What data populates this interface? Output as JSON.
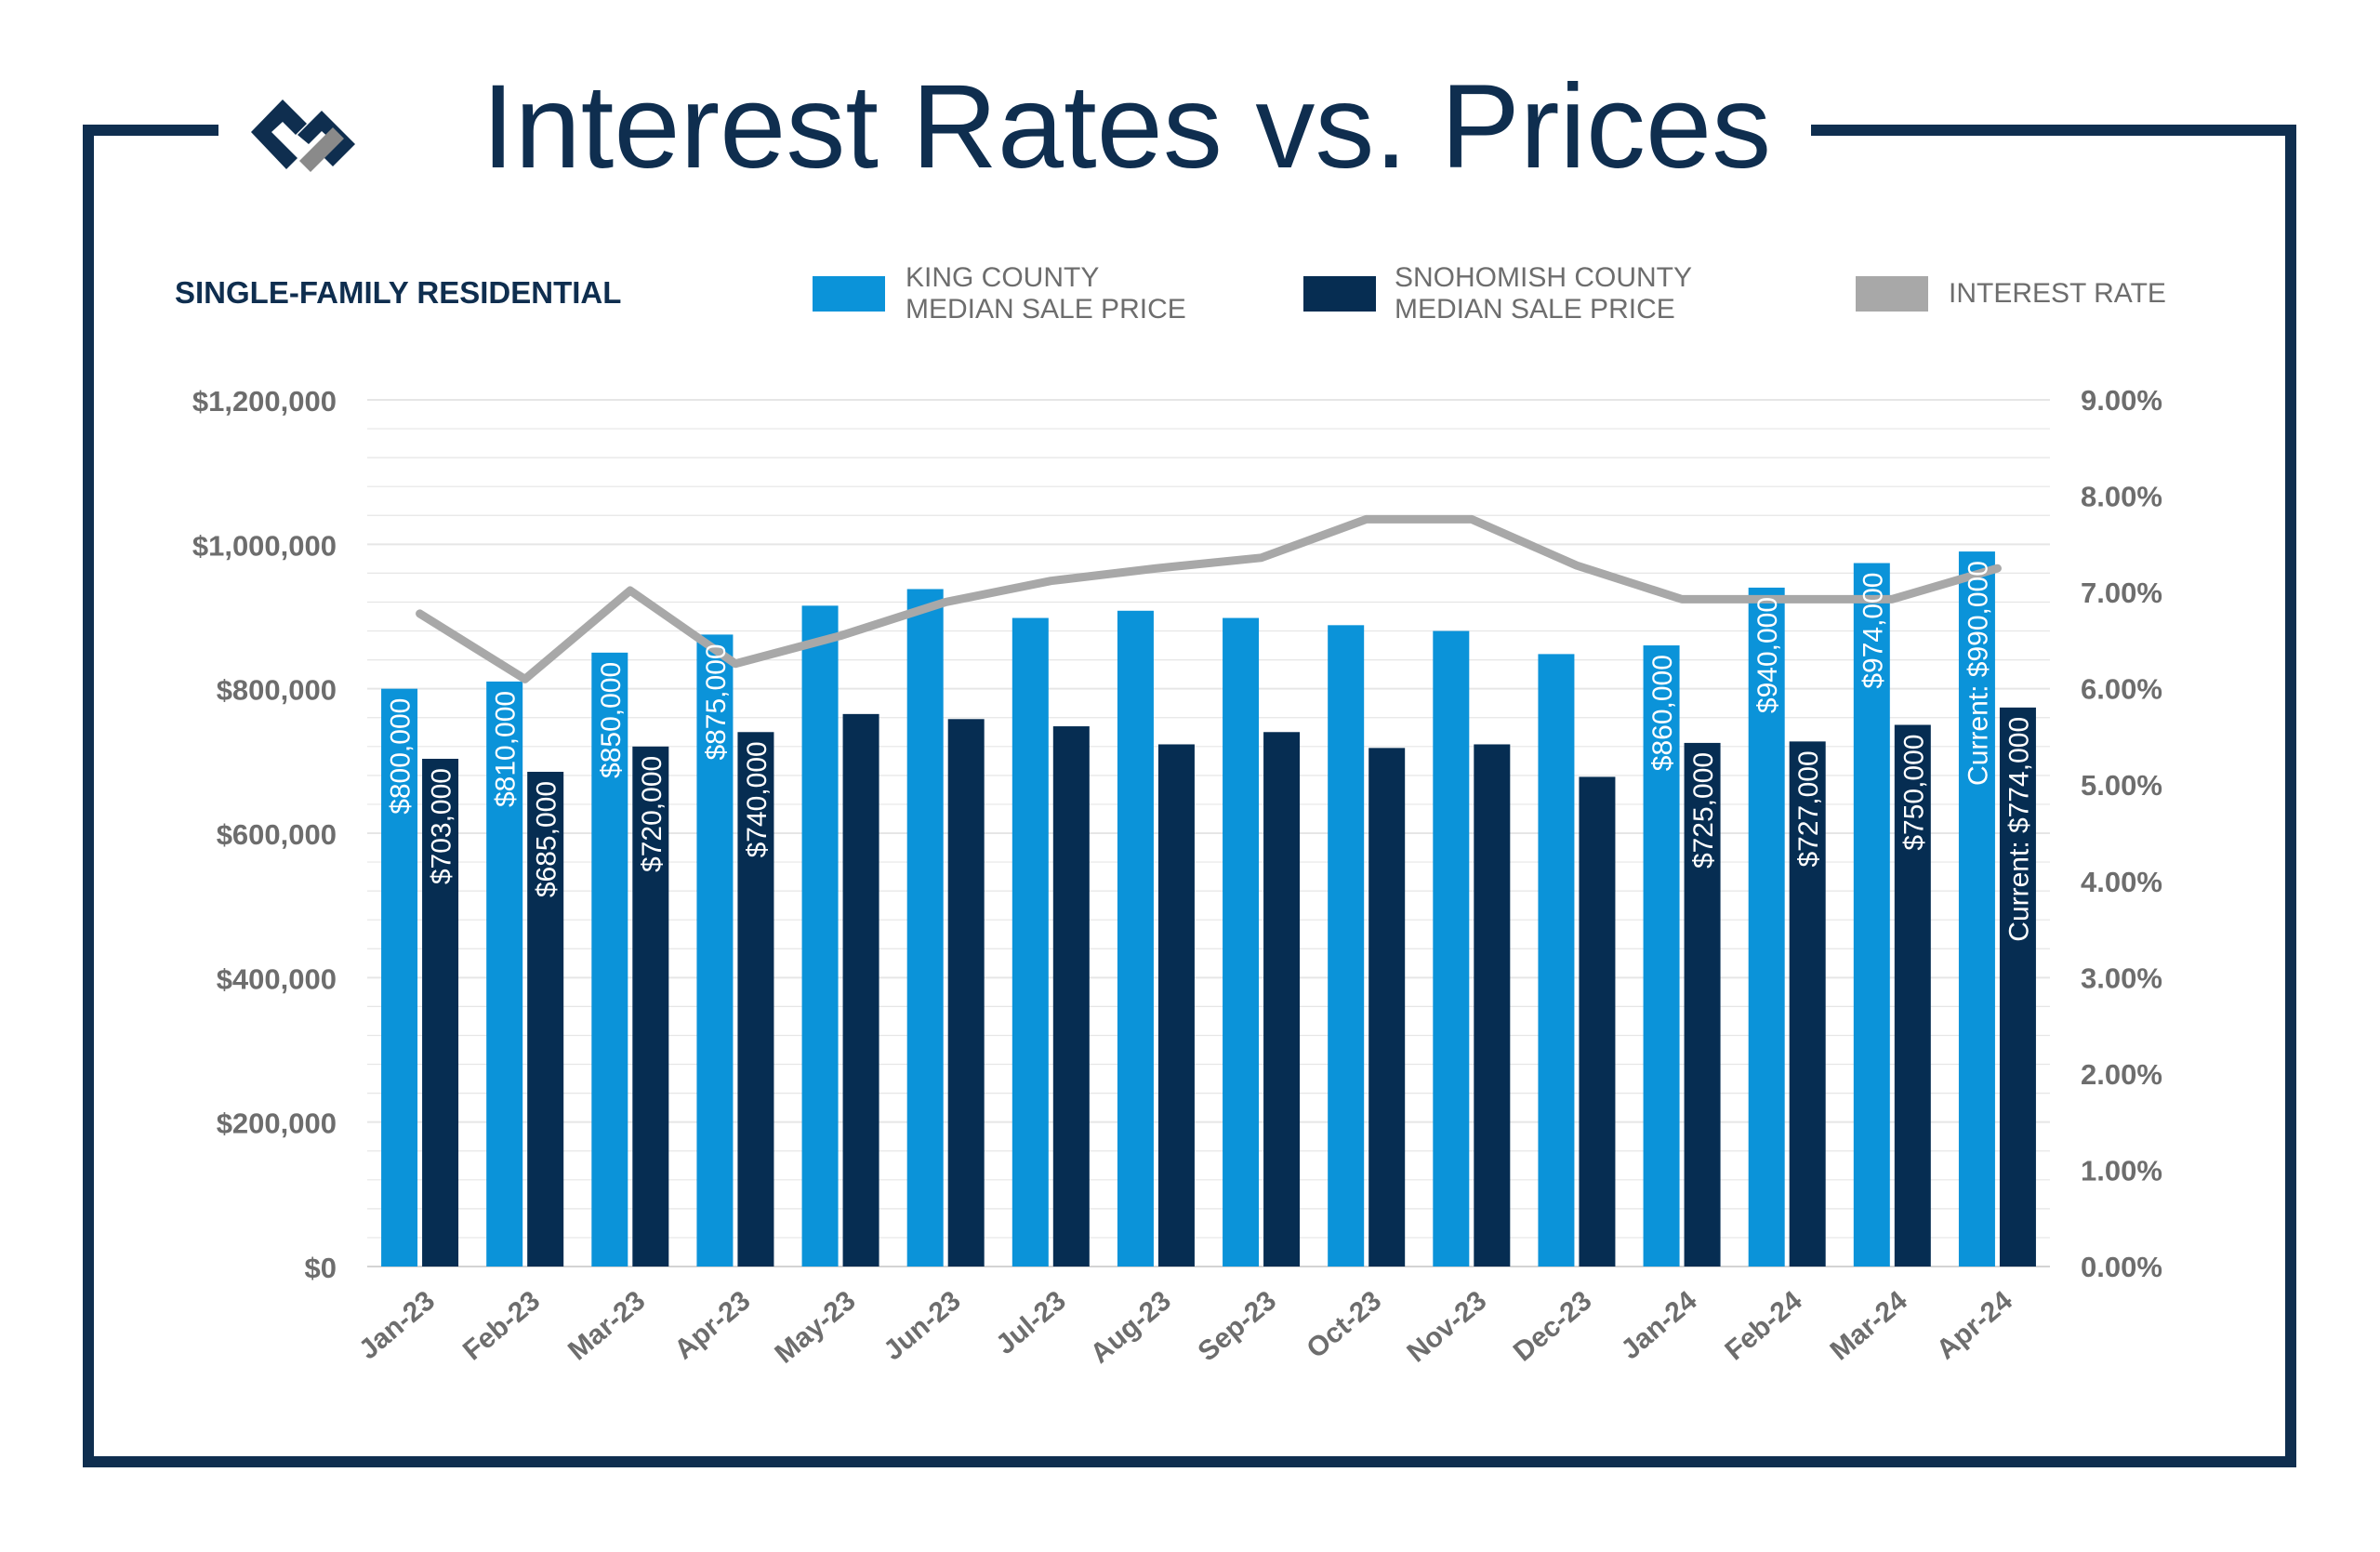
{
  "header": {
    "title": "Interest Rates vs. Prices",
    "subtitle": "SINGLE-FAMILY RESIDENTIAL"
  },
  "colors": {
    "frame": "#0f2e4f",
    "king": "#0b93d9",
    "snohomish": "#062d52",
    "rate": "#a8a8a8",
    "axis_text": "#6d6d6d",
    "grid": "#e6e6e6"
  },
  "legend": {
    "king_line1": "KING COUNTY",
    "king_line2": "MEDIAN SALE PRICE",
    "snohomish_line1": "SNOHOMISH COUNTY",
    "snohomish_line2": "MEDIAN SALE PRICE",
    "rate": "INTEREST RATE"
  },
  "chart_data": {
    "type": "bar",
    "categories": [
      "Jan-23",
      "Feb-23",
      "Mar-23",
      "Apr-23",
      "May-23",
      "Jun-23",
      "Jul-23",
      "Aug-23",
      "Sep-23",
      "Oct-23",
      "Nov-23",
      "Dec-23",
      "Jan-24",
      "Feb-24",
      "Mar-24",
      "Apr-24"
    ],
    "series": [
      {
        "name": "KING COUNTY MEDIAN SALE PRICE",
        "values": [
          800000,
          810000,
          850000,
          875000,
          915000,
          938000,
          898000,
          908000,
          898000,
          888000,
          880000,
          848000,
          860000,
          940000,
          974000,
          990000
        ],
        "labels": [
          "$800,000",
          "$810,000",
          "$850,000",
          "$875,000",
          "",
          "",
          "",
          "",
          "",
          "",
          "",
          "",
          "$860,000",
          "$940,000",
          "$974,000",
          "Current: $990,000"
        ]
      },
      {
        "name": "SNOHOMISH COUNTY MEDIAN SALE PRICE",
        "values": [
          703000,
          685000,
          720000,
          740000,
          765000,
          758000,
          748000,
          723000,
          740000,
          718000,
          723000,
          678000,
          725000,
          727000,
          750000,
          774000
        ],
        "labels": [
          "$703,000",
          "$685,000",
          "$720,000",
          "$740,000",
          "",
          "",
          "",
          "",
          "",
          "",
          "",
          "",
          "$725,000",
          "$727,000",
          "$750,000",
          "Current: $774,000"
        ]
      },
      {
        "name": "INTEREST RATE",
        "type": "line",
        "axis": "right",
        "values": [
          6.78,
          6.1,
          7.02,
          6.26,
          6.55,
          6.9,
          7.12,
          7.25,
          7.36,
          7.76,
          7.76,
          7.28,
          6.93,
          6.93,
          6.93,
          7.25
        ]
      }
    ],
    "y_left": {
      "range": [
        0,
        1200000
      ],
      "ticks": [
        0,
        200000,
        400000,
        600000,
        800000,
        1000000,
        1200000
      ],
      "tick_labels": [
        "$0",
        "$200,000",
        "$400,000",
        "$600,000",
        "$800,000",
        "$1,000,000",
        "$1,200,000"
      ]
    },
    "y_right": {
      "range": [
        0,
        9
      ],
      "ticks": [
        0,
        1,
        2,
        3,
        4,
        5,
        6,
        7,
        8,
        9
      ],
      "tick_labels": [
        "0.00%",
        "1.00%",
        "2.00%",
        "3.00%",
        "4.00%",
        "5.00%",
        "6.00%",
        "7.00%",
        "8.00%",
        "9.00%"
      ]
    },
    "grid": true,
    "legend_position": "top"
  }
}
